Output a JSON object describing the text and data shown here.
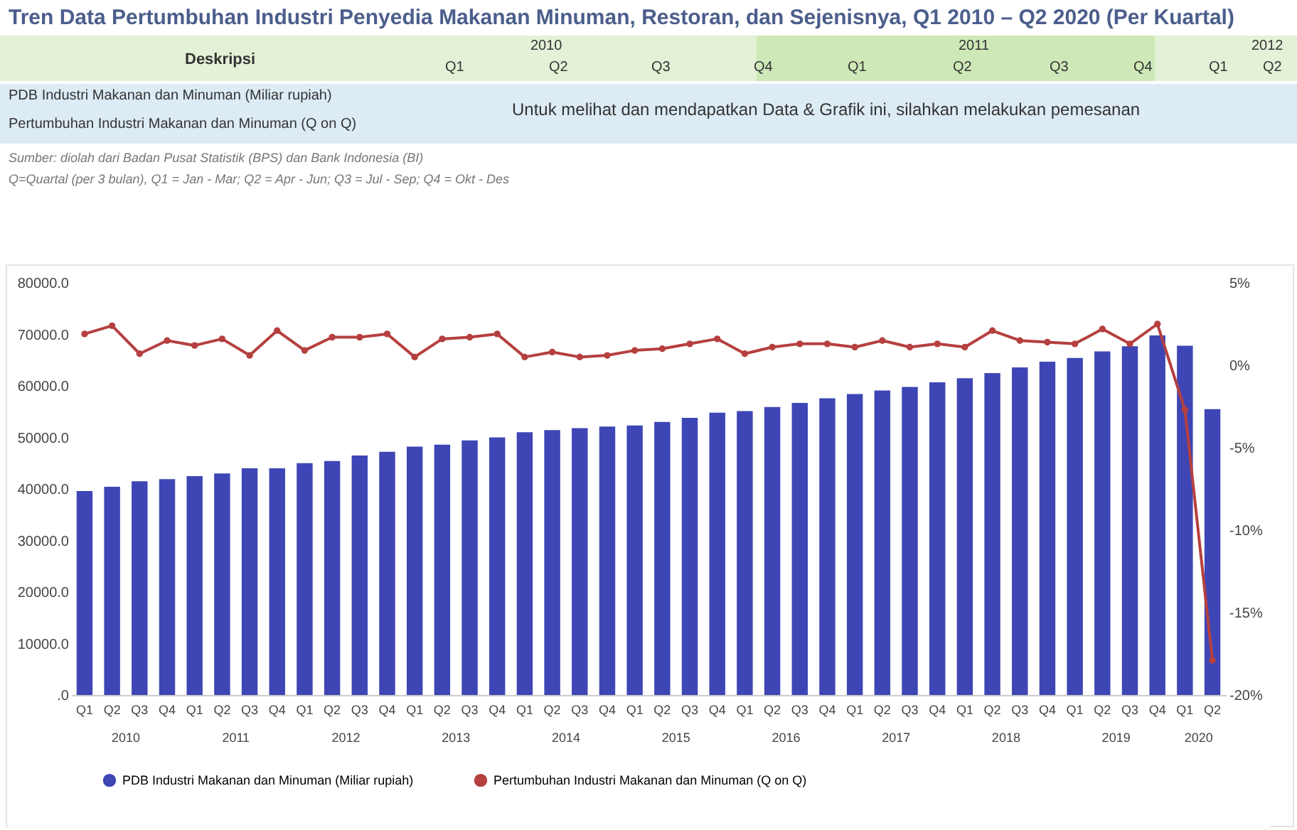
{
  "chart_data": {
    "type": "bar",
    "title": "Tren Data Pertumbuhan Industri Penyedia Makanan Minuman, Restoran, dan Sejenisnya, Q1 2010 – Q2 2020 (Per Kuartal)",
    "categories": [
      "Q1",
      "Q2",
      "Q3",
      "Q4",
      "Q1",
      "Q2",
      "Q3",
      "Q4",
      "Q1",
      "Q2",
      "Q3",
      "Q4",
      "Q1",
      "Q2",
      "Q3",
      "Q4",
      "Q1",
      "Q2",
      "Q3",
      "Q4",
      "Q1",
      "Q2",
      "Q3",
      "Q4",
      "Q1",
      "Q2",
      "Q3",
      "Q4",
      "Q1",
      "Q2",
      "Q3",
      "Q4",
      "Q1",
      "Q2",
      "Q3",
      "Q4",
      "Q1",
      "Q2",
      "Q3",
      "Q4",
      "Q1",
      "Q2"
    ],
    "series": [
      {
        "name": "PDB Industri Makanan dan Minuman (Miliar rupiah)",
        "color": "#3e46b5",
        "values": [
          39600,
          40400,
          41500,
          41900,
          42500,
          43000,
          44000,
          44000,
          45000,
          45400,
          46500,
          47200,
          48200,
          48600,
          49400,
          50000,
          51000,
          51400,
          51800,
          52100,
          52300,
          53000,
          53800,
          54800,
          55100,
          55900,
          56700,
          57600,
          58400,
          59100,
          59800,
          60700,
          61500,
          62500,
          63600,
          64700,
          65400,
          66700,
          67700,
          69800,
          67800,
          55500
        ]
      },
      {
        "name": "Pertumbuhan Industri Makanan dan Minuman (Q on Q)",
        "type": "line",
        "axis": "y2",
        "color": "#b5403f",
        "values": [
          1.9,
          2.4,
          0.7,
          1.5,
          1.2,
          1.6,
          0.6,
          2.1,
          0.9,
          1.7,
          1.7,
          1.9,
          0.5,
          1.6,
          1.7,
          1.9,
          0.5,
          0.8,
          0.5,
          0.6,
          0.9,
          1.0,
          1.3,
          1.6,
          0.7,
          1.1,
          1.3,
          1.3,
          1.1,
          1.5,
          1.1,
          1.3,
          1.1,
          2.1,
          1.5,
          1.4,
          1.3,
          2.2,
          1.3,
          2.5,
          -2.7,
          -17.9
        ]
      }
    ],
    "ylim": [
      0,
      80000
    ],
    "yticks": [
      {
        "value": 0,
        "label": ".0"
      },
      {
        "value": 10000,
        "label": "10000.0"
      },
      {
        "value": 20000,
        "label": "20000.0"
      },
      {
        "value": 30000,
        "label": "30000.0"
      },
      {
        "value": 40000,
        "label": "40000.0"
      },
      {
        "value": 50000,
        "label": "50000.0"
      },
      {
        "value": 60000,
        "label": "60000.0"
      },
      {
        "value": 70000,
        "label": "70000.0"
      },
      {
        "value": 80000,
        "label": "80000.0"
      }
    ],
    "y2lim": [
      -20,
      5
    ],
    "y2ticks": [
      {
        "value": -20,
        "label": "-20%"
      },
      {
        "value": -15,
        "label": "-15%"
      },
      {
        "value": -10,
        "label": "-10%"
      },
      {
        "value": -5,
        "label": "-5%"
      },
      {
        "value": 0,
        "label": "0%"
      },
      {
        "value": 5,
        "label": "5%"
      }
    ],
    "legend": "bottom",
    "marker": "circle",
    "line_style": "solid",
    "annotations": [
      "Deskripsi",
      "2010",
      "2011",
      "2012",
      "Q1",
      "Q2",
      "Q3",
      "Q4",
      "Q1",
      "Q2",
      "Q3",
      "Q4",
      "Q1",
      "Q2",
      "PDB Industri Makanan dan Minuman (Miliar rupiah)",
      "Pertumbuhan Industri Makanan dan Minuman (Q on Q)",
      "Untuk melihat dan mendapatkan Data & Grafik ini, silahkan melakukan pemesanan",
      "Sumber: diolah dari Badan Pusat Statistik (BPS) dan Bank Indonesia (BI)",
      "Q=Quartal (per 3 bulan), Q1 = Jan - Mar; Q2 = Apr - Jun; Q3 = Jul - Sep; Q4 = Okt - Des",
      "2010",
      "2011",
      "2012",
      "2013",
      "2014",
      "2015",
      "2016",
      "2017",
      "2018",
      "2019",
      "2020"
    ]
  }
}
